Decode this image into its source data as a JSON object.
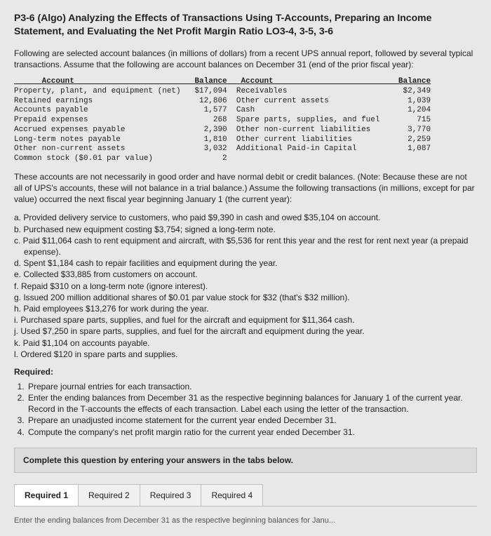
{
  "title": "P3-6 (Algo) Analyzing the Effects of Transactions Using T-Accounts, Preparing an Income Statement, and Evaluating the Net Profit Margin Ratio LO3-4, 3-5, 3-6",
  "intro": "Following are selected account balances (in millions of dollars) from a recent UPS annual report, followed by several typical transactions. Assume that the following are account balances on December 31 (end of the prior fiscal year):",
  "table": {
    "head_left": "Account",
    "head_bal": "Balance",
    "head_right": "Account",
    "head_bal2": "Balance",
    "rows_left": [
      {
        "a": "Property, plant, and equipment (net)",
        "b": "$17,094"
      },
      {
        "a": "Retained earnings",
        "b": "12,806"
      },
      {
        "a": "Accounts payable",
        "b": "1,577"
      },
      {
        "a": "Prepaid expenses",
        "b": "268"
      },
      {
        "a": "Accrued expenses payable",
        "b": "2,390"
      },
      {
        "a": "Long-term notes payable",
        "b": "1,810"
      },
      {
        "a": "Other non-current assets",
        "b": "3,032"
      },
      {
        "a": "Common stock ($0.01 par value)",
        "b": "2"
      }
    ],
    "rows_right": [
      {
        "a": "Receivables",
        "b": "$2,349"
      },
      {
        "a": "Other current assets",
        "b": "1,039"
      },
      {
        "a": "Cash",
        "b": "1,204"
      },
      {
        "a": "Spare parts, supplies, and fuel",
        "b": "715"
      },
      {
        "a": "Other non-current liabilities",
        "b": "3,770"
      },
      {
        "a": "Other current liabilities",
        "b": "2,259"
      },
      {
        "a": "Additional Paid-in Capital",
        "b": "1,087"
      }
    ]
  },
  "note": "These accounts are not necessarily in good order and have normal debit or credit balances. (Note: Because these are not all of UPS's accounts, these will not balance in a trial balance.) Assume the following transactions (in millions, except for par value) occurred the next fiscal year beginning January 1 (the current year):",
  "txns": [
    "a. Provided delivery service to customers, who paid $9,390 in cash and owed $35,104 on account.",
    "b. Purchased new equipment costing $3,754; signed a long-term note.",
    "c. Paid $11,064 cash to rent equipment and aircraft, with $5,536 for rent this year and the rest for rent next year (a prepaid expense).",
    "d. Spent $1,184 cash to repair facilities and equipment during the year.",
    "e. Collected $33,885 from customers on account.",
    "f. Repaid $310 on a long-term note (ignore interest).",
    "g. Issued 200 million additional shares of $0.01 par value stock for $32 (that's $32 million).",
    "h. Paid employees $13,276 for work during the year.",
    "i. Purchased spare parts, supplies, and fuel for the aircraft and equipment for $11,364 cash.",
    "j. Used $7,250 in spare parts, supplies, and fuel for the aircraft and equipment during the year.",
    "k. Paid $1,104 on accounts payable.",
    "l. Ordered $120 in spare parts and supplies."
  ],
  "required_label": "Required:",
  "required": [
    "Prepare journal entries for each transaction.",
    "Enter the ending balances from December 31 as the respective beginning balances for January 1 of the current year. Record in the T-accounts the effects of each transaction. Label each using the letter of the transaction.",
    "Prepare an unadjusted income statement for the current year ended December 31.",
    "Compute the company's net profit margin ratio for the current year ended December 31."
  ],
  "tab_instruction": "Complete this question by entering your answers in the tabs below.",
  "tabs": [
    "Required 1",
    "Required 2",
    "Required 3",
    "Required 4"
  ],
  "footer_cut": "Enter the ending balances from December 31 as the respective beginning balances for Janu..."
}
